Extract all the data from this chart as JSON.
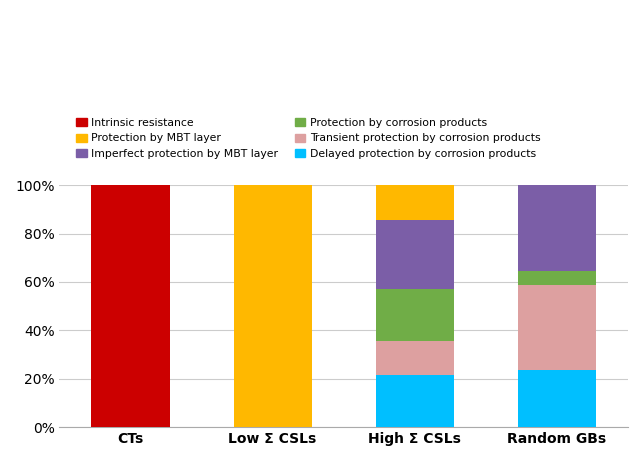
{
  "categories": [
    "CTs",
    "Low Σ CSLs",
    "High Σ CSLs",
    "Random GBs"
  ],
  "series": [
    {
      "label": "Delayed protection by corrosion products",
      "color": "#00BFFF",
      "values": [
        0.0,
        0.0,
        21.429,
        23.529
      ]
    },
    {
      "label": "Transient protection by corrosion products",
      "color": "#DDA0A0",
      "values": [
        0.0,
        0.0,
        14.286,
        35.294
      ]
    },
    {
      "label": "Protection by corrosion products",
      "color": "#70AD47",
      "values": [
        0.0,
        0.0,
        21.429,
        5.882
      ]
    },
    {
      "label": "Imperfect protection by MBT layer",
      "color": "#7B5EA7",
      "values": [
        0.0,
        0.0,
        28.571,
        35.294
      ]
    },
    {
      "label": "Protection by MBT layer",
      "color": "#FFB800",
      "values": [
        0.0,
        100.0,
        14.286,
        0.0
      ]
    },
    {
      "label": "Intrinsic resistance",
      "color": "#CC0000",
      "values": [
        100.0,
        0.0,
        0.0,
        0.0
      ]
    }
  ],
  "ylim": [
    0,
    100
  ],
  "ytick_labels": [
    "0%",
    "20%",
    "40%",
    "60%",
    "80%",
    "100%"
  ],
  "ytick_values": [
    0,
    20,
    40,
    60,
    80,
    100
  ],
  "bar_width": 0.55,
  "legend_indices": [
    5,
    4,
    3,
    2,
    1,
    0
  ],
  "legend_labels_ordered": [
    "Intrinsic resistance",
    "Protection by MBT layer",
    "Imperfect protection by MBT layer",
    "Protection by corrosion products",
    "Transient protection by corrosion products",
    "Delayed protection by corrosion products"
  ],
  "legend_colors_ordered": [
    "#CC0000",
    "#FFB800",
    "#7B5EA7",
    "#70AD47",
    "#DDA0A0",
    "#00BFFF"
  ],
  "background_color": "#FFFFFF"
}
